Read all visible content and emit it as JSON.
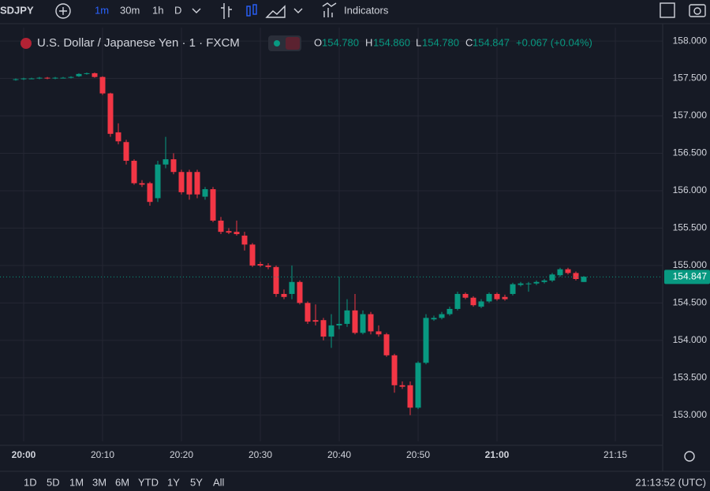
{
  "toolbar": {
    "symbol": "SDJPY",
    "intervals": [
      "1m",
      "30m",
      "1h",
      "D"
    ],
    "indicators": "Indicators"
  },
  "legend": {
    "name": "U.S. Dollar / Japanese Yen · 1 · FXCM",
    "o_label": "O",
    "o": "154.780",
    "h_label": "H",
    "h": "154.860",
    "l_label": "L",
    "l": "154.780",
    "c_label": "C",
    "c": "154.847",
    "change": "+0.067 (+0.04%)"
  },
  "ranges": [
    "1D",
    "5D",
    "1M",
    "3M",
    "6M",
    "YTD",
    "1Y",
    "5Y",
    "All"
  ],
  "clock": "21:13:52 (UTC)",
  "chart_data": {
    "type": "candlestick",
    "up_color": "#089981",
    "down_color": "#f23645",
    "grid": true,
    "x": [
      "19:59",
      "20:00",
      "20:01",
      "20:02",
      "20:03",
      "20:04",
      "20:05",
      "20:06",
      "20:07",
      "20:08",
      "20:09",
      "20:10",
      "20:11",
      "20:12",
      "20:13",
      "20:14",
      "20:15",
      "20:16",
      "20:17",
      "20:18",
      "20:19",
      "20:20",
      "20:21",
      "20:22",
      "20:23",
      "20:24",
      "20:25",
      "20:26",
      "20:27",
      "20:28",
      "20:29",
      "20:30",
      "20:31",
      "20:32",
      "20:33",
      "20:34",
      "20:35",
      "20:36",
      "20:37",
      "20:38",
      "20:39",
      "20:40",
      "20:41",
      "20:42",
      "20:43",
      "20:44",
      "20:45",
      "20:46",
      "20:47",
      "20:48",
      "20:49",
      "20:50",
      "20:51",
      "20:52",
      "20:53",
      "20:54",
      "20:55",
      "20:56",
      "20:57",
      "20:58",
      "20:59",
      "21:00",
      "21:01",
      "21:02",
      "21:03",
      "21:04",
      "21:05",
      "21:06",
      "21:07",
      "21:08",
      "21:09",
      "21:10",
      "21:11"
    ],
    "open": [
      157.48,
      157.49,
      157.5,
      157.5,
      157.51,
      157.5,
      157.51,
      157.51,
      157.53,
      157.56,
      157.57,
      157.52,
      157.3,
      156.78,
      156.65,
      156.4,
      156.1,
      156.1,
      155.9,
      156.35,
      156.42,
      156.25,
      156.25,
      156.25,
      155.92,
      156.02,
      155.6,
      155.46,
      155.45,
      155.4,
      155.28,
      155.02,
      155.0,
      154.98,
      154.62,
      154.62,
      154.78,
      154.5,
      154.27,
      154.27,
      154.05,
      154.2,
      154.22,
      154.4,
      154.1,
      154.35,
      154.12,
      154.08,
      153.8,
      153.4,
      153.4,
      153.1,
      153.7,
      154.28,
      154.3,
      154.35,
      154.42,
      154.62,
      154.57,
      154.45,
      154.52,
      154.62,
      154.58,
      154.62,
      154.74,
      154.75,
      154.76,
      154.78,
      154.8,
      154.87,
      154.95,
      154.9,
      154.78
    ],
    "high": [
      157.5,
      157.51,
      157.51,
      157.52,
      157.52,
      157.52,
      157.52,
      157.53,
      157.57,
      157.58,
      157.58,
      157.53,
      157.31,
      156.9,
      156.68,
      156.42,
      156.14,
      156.12,
      156.4,
      156.72,
      156.5,
      156.28,
      156.28,
      156.28,
      156.05,
      156.05,
      155.65,
      155.5,
      155.6,
      155.45,
      155.3,
      155.05,
      155.03,
      155.0,
      154.68,
      155.0,
      154.8,
      154.52,
      154.48,
      154.3,
      154.35,
      154.85,
      154.55,
      154.62,
      154.4,
      154.38,
      154.2,
      154.1,
      153.82,
      153.45,
      153.45,
      153.72,
      154.35,
      154.33,
      154.38,
      154.45,
      154.65,
      154.64,
      154.59,
      154.55,
      154.64,
      154.64,
      154.61,
      154.77,
      154.78,
      154.78,
      154.8,
      154.82,
      154.9,
      154.97,
      154.97,
      154.92,
      154.86
    ],
    "low": [
      157.47,
      157.48,
      157.49,
      157.49,
      157.49,
      157.49,
      157.5,
      157.5,
      157.52,
      157.55,
      157.51,
      157.28,
      156.72,
      156.62,
      156.35,
      156.08,
      156.05,
      155.8,
      155.85,
      156.3,
      156.22,
      155.95,
      155.88,
      155.9,
      155.88,
      155.58,
      155.42,
      155.42,
      155.4,
      155.2,
      154.98,
      154.98,
      154.95,
      154.58,
      154.55,
      154.55,
      154.48,
      154.22,
      154.2,
      154.0,
      153.9,
      154.15,
      154.18,
      154.08,
      154.08,
      154.08,
      154.05,
      153.78,
      153.3,
      153.35,
      153.0,
      153.08,
      153.68,
      154.26,
      154.28,
      154.33,
      154.4,
      154.55,
      154.45,
      154.43,
      154.5,
      154.53,
      154.53,
      154.6,
      154.72,
      154.65,
      154.74,
      154.76,
      154.78,
      154.85,
      154.88,
      154.8,
      154.78
    ],
    "close": [
      157.49,
      157.5,
      157.5,
      157.51,
      157.5,
      157.51,
      157.51,
      157.52,
      157.56,
      157.57,
      157.52,
      157.3,
      156.76,
      156.66,
      156.4,
      156.1,
      156.08,
      155.85,
      156.35,
      156.42,
      156.25,
      155.98,
      155.95,
      155.95,
      156.02,
      155.6,
      155.45,
      155.44,
      155.42,
      155.28,
      155.0,
      155.0,
      154.98,
      154.62,
      154.58,
      154.78,
      154.5,
      154.25,
      154.25,
      154.05,
      154.2,
      154.22,
      154.4,
      154.1,
      154.35,
      154.12,
      154.08,
      153.8,
      153.4,
      153.38,
      153.1,
      153.7,
      154.3,
      154.3,
      154.35,
      154.42,
      154.62,
      154.57,
      154.47,
      154.52,
      154.62,
      154.55,
      154.55,
      154.75,
      154.76,
      154.76,
      154.78,
      154.8,
      154.88,
      154.95,
      154.9,
      154.82,
      154.85
    ],
    "last_price": 154.847,
    "xlim": [
      "19:58",
      "21:21"
    ],
    "xticks": [
      "20:00",
      "20:10",
      "20:20",
      "20:30",
      "20:40",
      "20:50",
      "21:00",
      "21:15"
    ],
    "ylim": [
      152.65,
      158.18
    ],
    "yticks": [
      {
        "value": 153,
        "label": "153.000"
      },
      {
        "value": 153.5,
        "label": "153.500"
      },
      {
        "value": 154,
        "label": "154.000"
      },
      {
        "value": 154.5,
        "label": "154.500"
      },
      {
        "value": 155,
        "label": "155.000"
      },
      {
        "value": 155.5,
        "label": "155.500"
      },
      {
        "value": 156,
        "label": "156.000"
      },
      {
        "value": 156.5,
        "label": "156.500"
      },
      {
        "value": 157,
        "label": "157.000"
      },
      {
        "value": 157.5,
        "label": "157.500"
      },
      {
        "value": 158,
        "label": "158.000"
      }
    ]
  }
}
